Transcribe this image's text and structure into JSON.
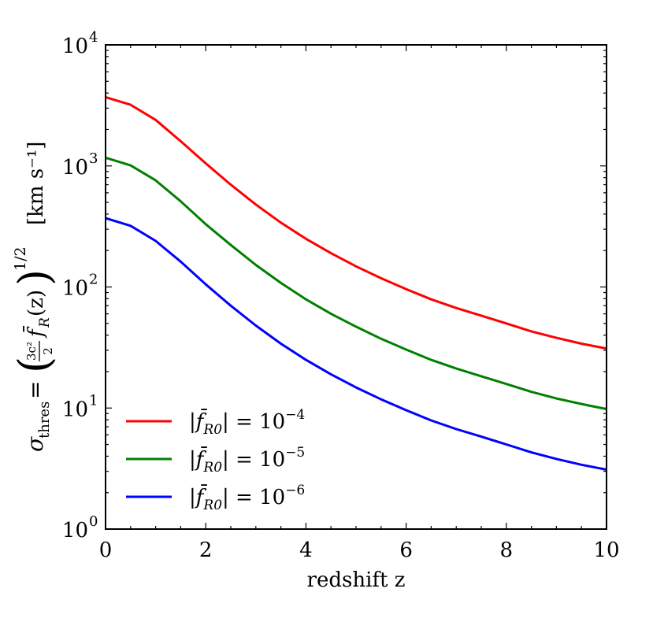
{
  "chart_data": {
    "type": "line",
    "xlabel": "redshift z",
    "ylabel": {
      "lhs_symbol": "σ",
      "lhs_sub": "thres",
      "equals": "=",
      "frac_num": "3c²",
      "frac_den": "2",
      "fbar": "f̄",
      "f_sub": "R",
      "arg": "(z)",
      "exponent": "1/2",
      "units": "[km s⁻¹]"
    },
    "xlim": [
      0,
      10
    ],
    "ylim": [
      1,
      10000
    ],
    "yscale": "log",
    "xticks": [
      0,
      2,
      4,
      6,
      8,
      10
    ],
    "xtick_labels": [
      "0",
      "2",
      "4",
      "6",
      "8",
      "10"
    ],
    "yticks": [
      {
        "value": 1,
        "base": "10",
        "exp": "0"
      },
      {
        "value": 10,
        "base": "10",
        "exp": "1"
      },
      {
        "value": 100,
        "base": "10",
        "exp": "2"
      },
      {
        "value": 1000,
        "base": "10",
        "exp": "3"
      },
      {
        "value": 10000,
        "base": "10",
        "exp": "4"
      }
    ],
    "x": [
      0,
      0.5,
      1,
      1.5,
      2,
      2.5,
      3,
      3.5,
      4,
      4.5,
      5,
      5.5,
      6,
      6.5,
      7,
      7.5,
      8,
      8.5,
      9,
      9.5,
      10
    ],
    "series": [
      {
        "name": "|f̄R0| = 10⁻⁴",
        "label_pre": "|",
        "label_f": "f̄",
        "label_sub": "R0",
        "label_post": "| = 10",
        "label_exp": "−4",
        "color": "#ff0000",
        "values": [
          3700,
          3200,
          2400,
          1600,
          1050,
          700,
          480,
          340,
          250,
          190,
          148,
          118,
          96,
          79,
          67,
          58,
          50,
          43,
          38,
          34,
          31
        ]
      },
      {
        "name": "|f̄R0| = 10⁻⁵",
        "label_pre": "|",
        "label_f": "f̄",
        "label_sub": "R0",
        "label_post": "| = 10",
        "label_exp": "−5",
        "color": "#008000",
        "values": [
          1170,
          1010,
          760,
          510,
          330,
          222,
          152,
          108,
          79,
          60,
          47,
          37.3,
          30.4,
          25,
          21.2,
          18.3,
          15.8,
          13.6,
          12,
          10.8,
          9.8
        ]
      },
      {
        "name": "|f̄R0| = 10⁻⁶",
        "label_pre": "|",
        "label_f": "f̄",
        "label_sub": "R0",
        "label_post": "| = 10",
        "label_exp": "−6",
        "color": "#0000ff",
        "values": [
          370,
          320,
          240,
          162,
          105,
          70,
          48,
          34,
          25,
          19,
          14.8,
          11.8,
          9.6,
          7.9,
          6.7,
          5.8,
          5,
          4.3,
          3.8,
          3.4,
          3.1
        ]
      }
    ],
    "legend_loc": "lower-left"
  }
}
